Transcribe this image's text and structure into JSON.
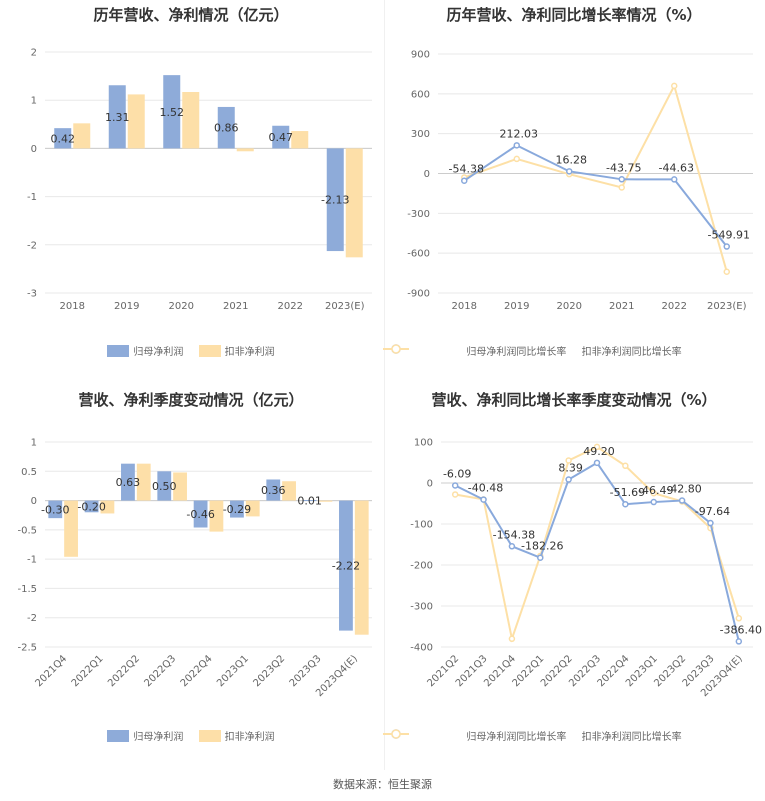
{
  "footer": "数据来源：恒生聚源",
  "colors": {
    "blue": "#8eabd9",
    "orange": "#fddfa8",
    "line_blue": "#89a9dc",
    "line_orange": "#fde0a6",
    "grid": "#e8e8e8",
    "axis": "#cccccc"
  },
  "chart_data": [
    {
      "type": "bar",
      "title": "历年营收、净利情况（亿元）",
      "categories": [
        "2018",
        "2019",
        "2020",
        "2021",
        "2022",
        "2023(E)"
      ],
      "series": [
        {
          "name": "归母净利润",
          "values": [
            0.42,
            1.31,
            1.52,
            0.86,
            0.47,
            -2.13
          ]
        },
        {
          "name": "扣非净利润",
          "values": [
            0.52,
            1.12,
            1.17,
            -0.06,
            0.36,
            -2.26
          ]
        }
      ],
      "data_labels": [
        "0.42",
        "1.31",
        "1.52",
        "0.86",
        "0.47",
        "-2.13"
      ],
      "yticks": [
        2,
        1,
        0,
        -1,
        -2,
        -3
      ],
      "ylim": [
        -3,
        2
      ]
    },
    {
      "type": "line",
      "title": "历年营收、净利同比增长率情况（%）",
      "categories": [
        "2018",
        "2019",
        "2020",
        "2021",
        "2022",
        "2023(E)"
      ],
      "series": [
        {
          "name": "归母净利润同比增长率",
          "values": [
            -54.38,
            212.03,
            16.28,
            -43.75,
            -44.63,
            -549.91
          ]
        },
        {
          "name": "扣非净利润同比增长率",
          "values": [
            -30,
            110,
            -5,
            -105,
            660,
            -740
          ]
        }
      ],
      "data_labels": [
        "-54.38",
        "212.03",
        "16.28",
        "-43.75",
        "-44.63",
        "-549.91"
      ],
      "yticks": [
        900,
        600,
        300,
        0,
        -300,
        -600,
        -900
      ],
      "ylim": [
        -900,
        900
      ]
    },
    {
      "type": "bar",
      "title": "营收、净利季度变动情况（亿元）",
      "categories": [
        "2021Q4",
        "2022Q1",
        "2022Q2",
        "2022Q3",
        "2022Q4",
        "2023Q1",
        "2023Q2",
        "2023Q3",
        "2023Q4(E)"
      ],
      "series": [
        {
          "name": "归母净利润",
          "values": [
            -0.3,
            -0.2,
            0.63,
            0.5,
            -0.46,
            -0.29,
            0.36,
            0.01,
            -2.22
          ]
        },
        {
          "name": "扣非净利润",
          "values": [
            -0.96,
            -0.22,
            0.63,
            0.48,
            -0.53,
            -0.27,
            0.33,
            -0.02,
            -2.29
          ]
        }
      ],
      "data_labels": [
        "-0.30",
        "-0.20",
        "0.63",
        "0.50",
        "-0.46",
        "-0.29",
        "0.36",
        "0.01",
        "-2.22"
      ],
      "yticks": [
        1,
        0.5,
        0,
        -0.5,
        -1,
        -1.5,
        -2,
        -2.5
      ],
      "ylim": [
        -2.5,
        1
      ]
    },
    {
      "type": "line",
      "title": "营收、净利同比增长率季度变动情况（%）",
      "categories": [
        "2021Q2",
        "2021Q3",
        "2021Q4",
        "2022Q1",
        "2022Q2",
        "2022Q3",
        "2022Q4",
        "2023Q1",
        "2023Q2",
        "2023Q3",
        "2023Q4(E)"
      ],
      "series": [
        {
          "name": "归母净利润同比增长率",
          "values": [
            -6.09,
            -40.48,
            -154.38,
            -182.26,
            8.39,
            49.2,
            -51.69,
            -46.49,
            -42.8,
            -97.64,
            -386.4
          ]
        },
        {
          "name": "扣非净利润同比增长率",
          "values": [
            -28,
            -40,
            -380,
            -178,
            55,
            88,
            42,
            -25,
            -45,
            -110,
            -330
          ]
        }
      ],
      "data_labels": [
        "-6.09",
        "-40.48",
        "-154.38",
        "-182.26",
        "8.39",
        "49.20",
        "-51.69",
        "-46.49",
        "-42.80",
        "-97.64",
        "-386.40"
      ],
      "yticks": [
        100,
        0,
        -100,
        -200,
        -300,
        -400
      ],
      "ylim": [
        -400,
        100
      ]
    }
  ]
}
